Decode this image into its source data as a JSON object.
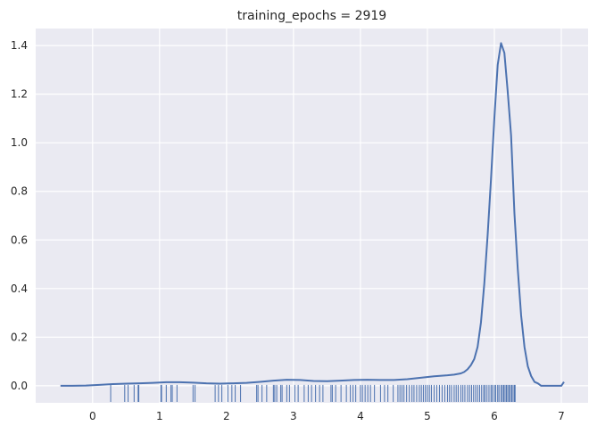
{
  "chart_data": {
    "type": "line",
    "title": "training_epochs = 2919",
    "xlabel": "",
    "ylabel": "",
    "xlim": [
      -0.85,
      7.4
    ],
    "ylim": [
      -0.07,
      1.47
    ],
    "x_ticks": [
      0,
      1,
      2,
      3,
      4,
      5,
      6,
      7
    ],
    "x_tick_labels": [
      "0",
      "1",
      "2",
      "3",
      "4",
      "5",
      "6",
      "7"
    ],
    "y_ticks": [
      0.0,
      0.2,
      0.4,
      0.6,
      0.8,
      1.0,
      1.2,
      1.4
    ],
    "y_tick_labels": [
      "0.0",
      "0.2",
      "0.4",
      "0.6",
      "0.8",
      "1.0",
      "1.2",
      "1.4"
    ],
    "grid": true,
    "background": "#eaeaf2",
    "grid_color": "#ffffff",
    "line_color": "#4c72b0",
    "series": [
      {
        "kind": "kde",
        "x": [
          -0.48,
          -0.3,
          -0.1,
          0.1,
          0.3,
          0.5,
          0.7,
          0.9,
          1.1,
          1.3,
          1.5,
          1.7,
          1.9,
          2.1,
          2.3,
          2.5,
          2.7,
          2.9,
          3.1,
          3.3,
          3.5,
          3.7,
          3.9,
          4.1,
          4.3,
          4.5,
          4.7,
          4.9,
          5.1,
          5.3,
          5.4,
          5.5,
          5.55,
          5.6,
          5.65,
          5.7,
          5.75,
          5.8,
          5.85,
          5.9,
          5.95,
          6.0,
          6.05,
          6.1,
          6.15,
          6.2,
          6.25,
          6.3,
          6.35,
          6.4,
          6.45,
          6.5,
          6.55,
          6.6,
          6.65,
          6.7,
          6.75,
          6.8,
          6.85,
          6.9,
          6.95,
          7.0,
          7.04
        ],
        "y": [
          0.0,
          0.0,
          0.001,
          0.004,
          0.007,
          0.009,
          0.01,
          0.012,
          0.015,
          0.015,
          0.013,
          0.01,
          0.009,
          0.01,
          0.012,
          0.016,
          0.021,
          0.025,
          0.024,
          0.02,
          0.019,
          0.021,
          0.024,
          0.025,
          0.024,
          0.024,
          0.027,
          0.033,
          0.039,
          0.043,
          0.046,
          0.051,
          0.057,
          0.068,
          0.085,
          0.11,
          0.16,
          0.26,
          0.42,
          0.62,
          0.85,
          1.1,
          1.32,
          1.41,
          1.37,
          1.21,
          1.03,
          0.71,
          0.48,
          0.29,
          0.16,
          0.08,
          0.04,
          0.016,
          0.01,
          0.0,
          0.0,
          0.0,
          0.0,
          0.0,
          0.0,
          0.0,
          0.016
        ]
      }
    ],
    "rug": [
      0.27,
      0.48,
      0.53,
      0.62,
      0.68,
      0.69,
      1.02,
      1.03,
      1.1,
      1.17,
      1.19,
      1.26,
      1.5,
      1.53,
      1.83,
      1.88,
      1.93,
      2.02,
      2.08,
      2.13,
      2.21,
      2.45,
      2.47,
      2.53,
      2.6,
      2.7,
      2.72,
      2.75,
      2.81,
      2.83,
      2.9,
      2.94,
      3.02,
      3.07,
      3.16,
      3.22,
      3.27,
      3.33,
      3.39,
      3.44,
      3.56,
      3.58,
      3.63,
      3.71,
      3.79,
      3.85,
      3.89,
      3.93,
      4.0,
      4.03,
      4.07,
      4.11,
      4.15,
      4.21,
      4.3,
      4.36,
      4.41,
      4.49,
      4.56,
      4.59,
      4.62,
      4.65,
      4.69,
      4.73,
      4.77,
      4.8,
      4.84,
      4.88,
      4.91,
      4.94,
      4.97,
      5.0,
      5.03,
      5.06,
      5.1,
      5.14,
      5.18,
      5.22,
      5.26,
      5.3,
      5.33,
      5.36,
      5.4,
      5.43,
      5.46,
      5.5,
      5.53,
      5.56,
      5.6,
      5.63,
      5.66,
      5.69,
      5.72,
      5.75,
      5.78,
      5.81,
      5.84,
      5.86,
      5.89,
      5.92,
      5.95,
      5.97,
      6.0,
      6.02,
      6.05,
      6.07,
      6.1,
      6.12,
      6.14,
      6.16,
      6.18,
      6.2,
      6.22,
      6.24,
      6.26,
      6.28,
      6.3,
      6.31
    ]
  }
}
